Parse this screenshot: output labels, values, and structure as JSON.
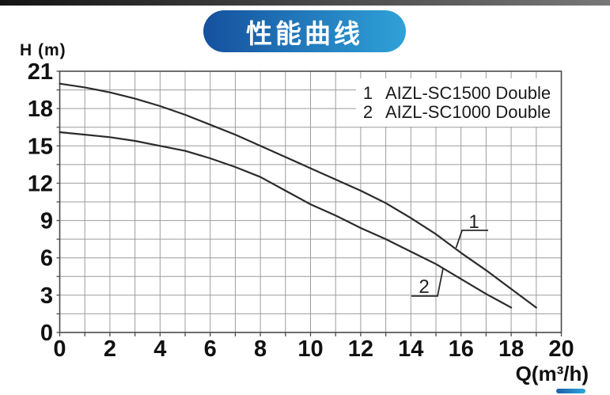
{
  "header": {
    "badge_label": "性能曲线"
  },
  "colors": {
    "badge_gradient_start": "#15509e",
    "badge_gradient_end": "#2fa2d8",
    "top_bar_start": "#141414",
    "top_bar_end": "#787878",
    "accent_bar_start": "#1c5ea8",
    "accent_bar_end": "#2da7dc",
    "grid": "#9c9c9c",
    "axis": "#4a4a4a",
    "curve": "#2b2b2b",
    "text": "#111111"
  },
  "chart_data": {
    "type": "line",
    "title": "性能曲线",
    "xlabel": "Q(m³/h)",
    "ylabel": "H (m)",
    "xlim": [
      0,
      20
    ],
    "ylim": [
      0,
      21
    ],
    "x_tick_labels": [
      0,
      2,
      4,
      6,
      8,
      10,
      12,
      14,
      16,
      18,
      20
    ],
    "y_tick_labels": [
      0,
      3,
      6,
      9,
      12,
      15,
      18,
      21
    ],
    "x_grid_step": 1,
    "y_grid_step": 1.5,
    "grid": true,
    "legend_position": "top-right-inside",
    "series": [
      {
        "index": "1",
        "name": "AIZL-SC1500 Double",
        "q": [
          0,
          1,
          2,
          3,
          4,
          5,
          6,
          7,
          8,
          9,
          10,
          11,
          12,
          13,
          14,
          15,
          16,
          17,
          18,
          19
        ],
        "h": [
          20.0,
          19.7,
          19.3,
          18.8,
          18.2,
          17.5,
          16.7,
          15.9,
          15.0,
          14.1,
          13.2,
          12.3,
          11.4,
          10.4,
          9.2,
          7.9,
          6.4,
          5.0,
          3.5,
          2.0
        ]
      },
      {
        "index": "2",
        "name": "AIZL-SC1000 Double",
        "q": [
          0,
          1,
          2,
          3,
          4,
          5,
          6,
          7,
          8,
          9,
          10,
          11,
          12,
          13,
          14,
          15,
          16,
          17,
          18
        ],
        "h": [
          16.1,
          15.9,
          15.7,
          15.4,
          15.0,
          14.6,
          14.0,
          13.3,
          12.5,
          11.4,
          10.3,
          9.4,
          8.4,
          7.5,
          6.5,
          5.5,
          4.3,
          3.1,
          2.0
        ]
      }
    ],
    "curve_annotations": [
      {
        "label": "1"
      },
      {
        "label": "2"
      }
    ]
  }
}
